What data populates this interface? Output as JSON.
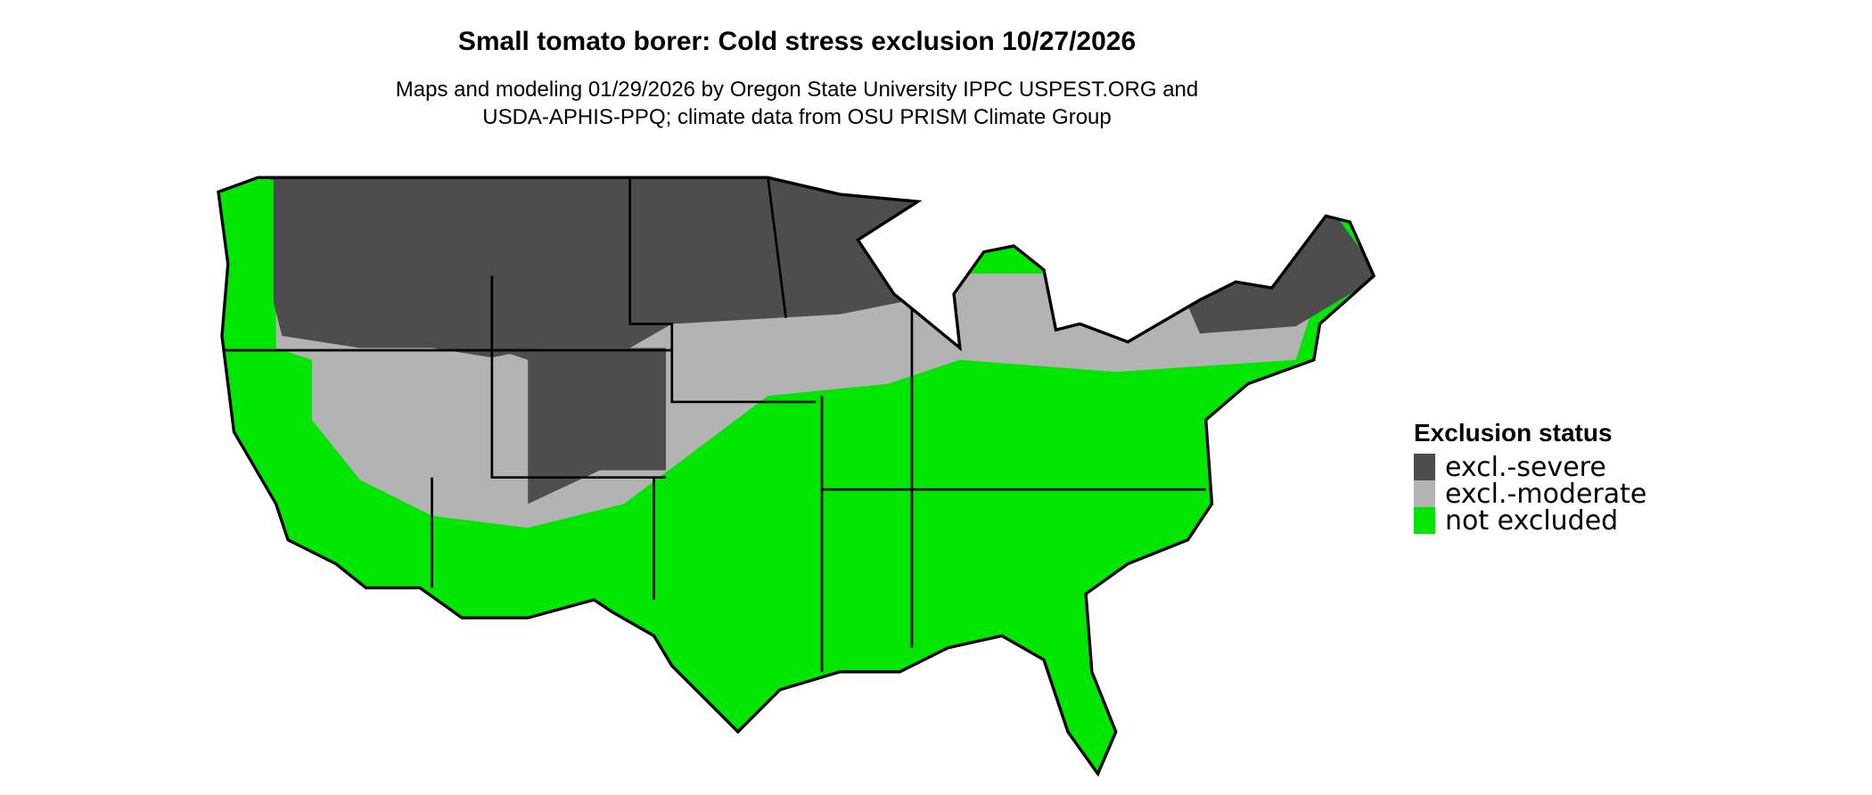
{
  "map": {
    "title": "Small tomato borer: Cold stress exclusion 10/27/2026",
    "subtitle": [
      "Maps and modeling 01/29/2026 by Oregon State University IPPC USPEST.ORG and",
      "USDA-APHIS-PPQ; climate data from OSU PRISM Climate Group"
    ],
    "legend": {
      "title": "Exclusion status",
      "items": [
        {
          "label": "excl.-severe",
          "color": "#4d4d4d"
        },
        {
          "label": "excl.-moderate",
          "color": "#b3b3b3"
        },
        {
          "label": "not excluded",
          "color": "#00e600"
        }
      ]
    }
  }
}
